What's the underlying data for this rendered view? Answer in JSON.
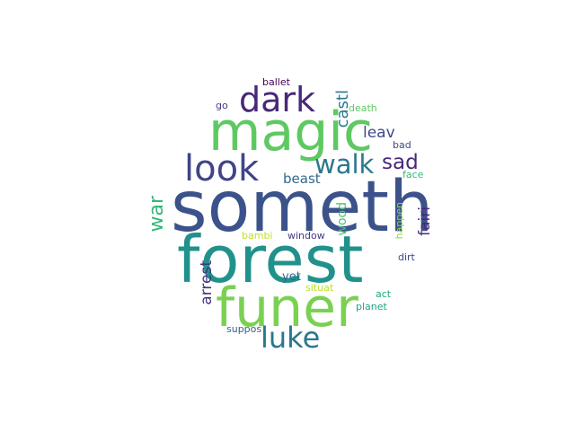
{
  "words": [
    {
      "text": "someth",
      "color": "#3b528b"
    },
    {
      "text": "forest",
      "color": "#21918c"
    },
    {
      "text": "magic",
      "color": "#5ec962"
    },
    {
      "text": "funer",
      "color": "#7ad151"
    },
    {
      "text": "look",
      "color": "#414487"
    },
    {
      "text": "dark",
      "color": "#482878"
    },
    {
      "text": "luke",
      "color": "#2a788e"
    },
    {
      "text": "walk",
      "color": "#2a788e"
    },
    {
      "text": "sad",
      "color": "#482878"
    },
    {
      "text": "war",
      "color": "#35b779"
    },
    {
      "text": "castl",
      "color": "#2a788e"
    },
    {
      "text": "leav",
      "color": "#3e4989"
    },
    {
      "text": "beast",
      "color": "#31688e"
    },
    {
      "text": "fairi",
      "color": "#482878"
    },
    {
      "text": "arrest",
      "color": "#46337e"
    },
    {
      "text": "wood",
      "color": "#4ac16d"
    },
    {
      "text": "bad",
      "color": "#3e4989"
    },
    {
      "text": "face",
      "color": "#35b779"
    },
    {
      "text": "ballet",
      "color": "#440154"
    },
    {
      "text": "go",
      "color": "#443983"
    },
    {
      "text": "death",
      "color": "#5ec962"
    },
    {
      "text": "happen",
      "color": "#90d743"
    },
    {
      "text": "bambi",
      "color": "#c2df23"
    },
    {
      "text": "window",
      "color": "#443983"
    },
    {
      "text": "dirt",
      "color": "#3e4989"
    },
    {
      "text": "yet",
      "color": "#31688e"
    },
    {
      "text": "situat",
      "color": "#bddf26"
    },
    {
      "text": "act",
      "color": "#22a884"
    },
    {
      "text": "planet",
      "color": "#20a386"
    },
    {
      "text": "suppos",
      "color": "#355f8d"
    }
  ]
}
